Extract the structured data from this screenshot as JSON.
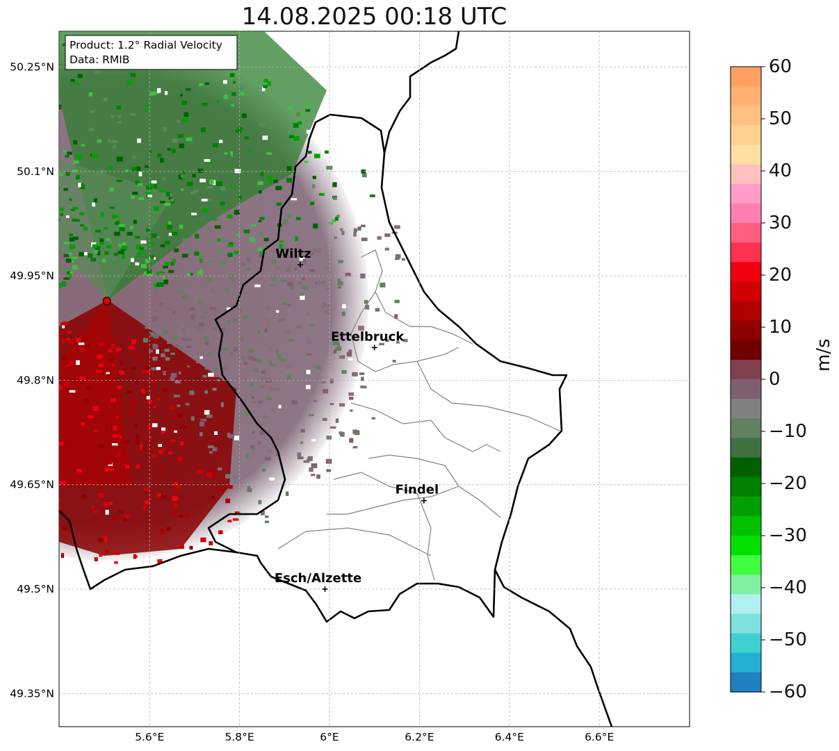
{
  "title": "14.08.2025 00:18 UTC",
  "info_box": {
    "product": "Product: 1.2° Radial Velocity",
    "data": "Data: RMIB"
  },
  "lat_labels": [
    "50.25°N",
    "50.1°N",
    "49.95°N",
    "49.8°N",
    "49.65°N",
    "49.5°N",
    "49.35°N"
  ],
  "lon_labels": [
    "5.6°E",
    "5.8°E",
    "6°E",
    "6.2°E",
    "6.4°E",
    "6.6°E"
  ],
  "cities": [
    {
      "name": "Wiltz",
      "lon": 5.935,
      "lat": 49.966
    },
    {
      "name": "Ettelbruck",
      "lon": 6.1,
      "lat": 49.847
    },
    {
      "name": "Findel",
      "lon": 6.21,
      "lat": 49.627
    },
    {
      "name": "Esch/Alzette",
      "lon": 5.99,
      "lat": 49.5
    }
  ],
  "radar_site": {
    "lon": 5.505,
    "lat": 49.914
  },
  "colorbar": {
    "label": "m/s",
    "ticks": [
      "60",
      "50",
      "40",
      "30",
      "20",
      "10",
      "0",
      "−10",
      "−20",
      "−30",
      "−40",
      "−50",
      "−60"
    ],
    "range": [
      -60,
      60
    ],
    "colors": [
      "#ffa060",
      "#ffb070",
      "#ffc080",
      "#ffd090",
      "#ffe0a0",
      "#ffc0c0",
      "#ff9cc8",
      "#ff80b0",
      "#ff6080",
      "#ff3050",
      "#f00010",
      "#d00000",
      "#b00000",
      "#900000",
      "#700000",
      "#804050",
      "#806070",
      "#808080",
      "#608060",
      "#407040",
      "#006000",
      "#008000",
      "#00a000",
      "#00c000",
      "#00e000",
      "#40ff40",
      "#80f0a0",
      "#b0f0f0",
      "#80e0e0",
      "#40d0d0",
      "#20b0d0",
      "#2080c0"
    ]
  },
  "colors": {
    "border": "#000000",
    "canton": "#808080",
    "grid": "#b0b0b0"
  }
}
